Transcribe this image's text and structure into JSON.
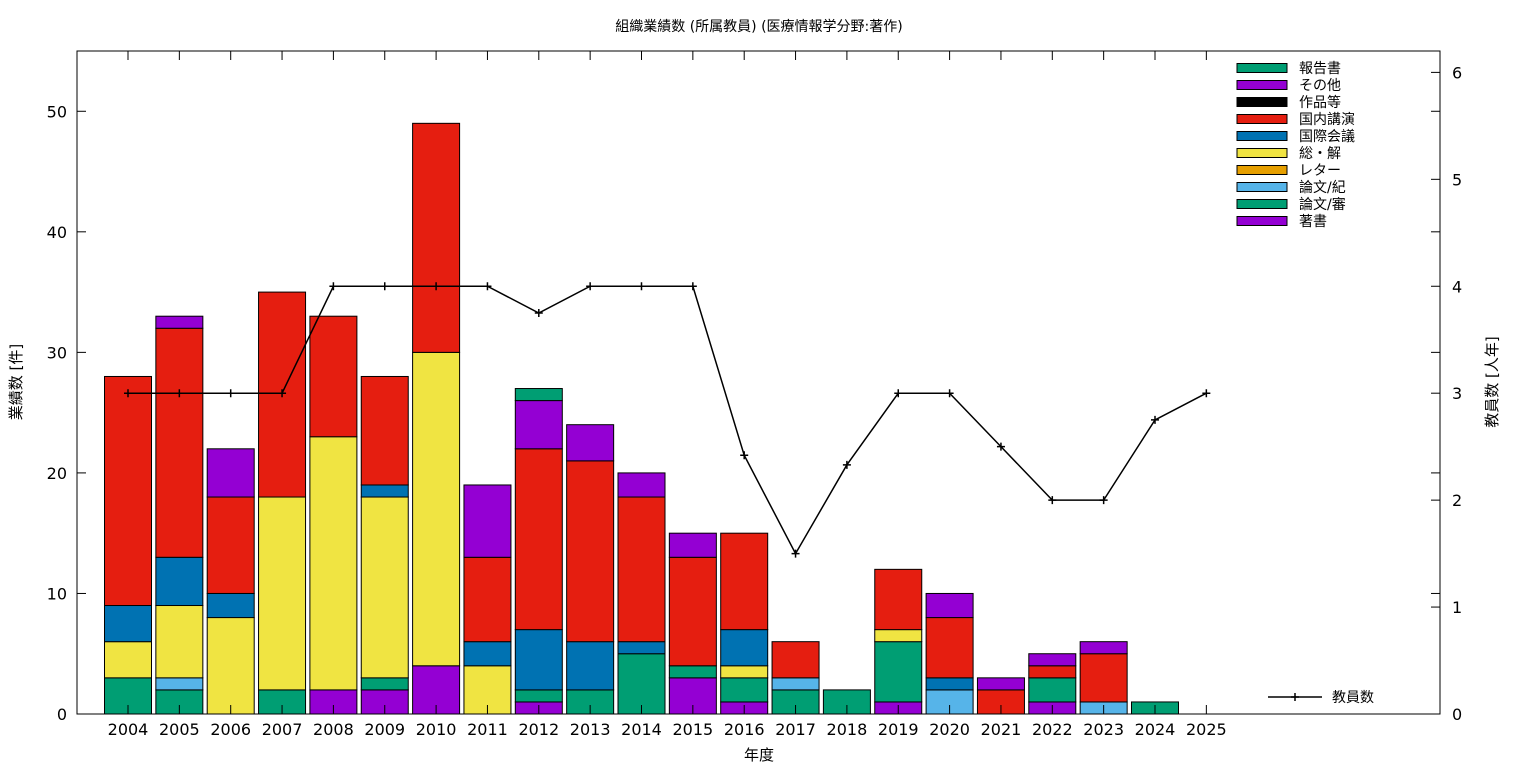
{
  "chart_data": {
    "type": "bar",
    "stacked": true,
    "title": "組織業績数 (所属教員) (医療情報学分野:著作)",
    "xlabel": "年度",
    "ylabel": "業績数 [件]",
    "y2label": "教員数 [人年]",
    "ylim": [
      0,
      55
    ],
    "y2lim": [
      0,
      6.2
    ],
    "yticks": [
      0,
      10,
      20,
      30,
      40,
      50
    ],
    "y2ticks": [
      0,
      1,
      2,
      3,
      4,
      5,
      6
    ],
    "categories": [
      "2004",
      "2005",
      "2006",
      "2007",
      "2008",
      "2009",
      "2010",
      "2011",
      "2012",
      "2013",
      "2014",
      "2015",
      "2016",
      "2017",
      "2018",
      "2019",
      "2020",
      "2021",
      "2022",
      "2023",
      "2024",
      "2025"
    ],
    "series": [
      {
        "name": "著書",
        "color": "#9400d3",
        "values": [
          0,
          0,
          0,
          0,
          2,
          2,
          4,
          0,
          1,
          0,
          0,
          3,
          1,
          0,
          0,
          1,
          0,
          0,
          1,
          0,
          0,
          0
        ]
      },
      {
        "name": "論文/審",
        "color": "#009e73",
        "values": [
          3,
          2,
          0,
          2,
          0,
          1,
          0,
          0,
          1,
          2,
          5,
          1,
          2,
          2,
          2,
          5,
          0,
          0,
          2,
          0,
          1,
          0
        ]
      },
      {
        "name": "論文/紀",
        "color": "#56b4e9",
        "values": [
          0,
          1,
          0,
          0,
          0,
          0,
          0,
          0,
          0,
          0,
          0,
          0,
          0,
          1,
          0,
          0,
          2,
          0,
          0,
          1,
          0,
          0
        ]
      },
      {
        "name": "レター",
        "color": "#e69f00",
        "values": [
          0,
          0,
          0,
          0,
          0,
          0,
          0,
          0,
          0,
          0,
          0,
          0,
          0,
          0,
          0,
          0,
          0,
          0,
          0,
          0,
          0,
          0
        ]
      },
      {
        "name": "総・解",
        "color": "#f0e442",
        "values": [
          3,
          6,
          8,
          16,
          21,
          15,
          26,
          4,
          0,
          0,
          0,
          0,
          1,
          0,
          0,
          1,
          0,
          0,
          0,
          0,
          0,
          0
        ]
      },
      {
        "name": "国際会議",
        "color": "#0072b2",
        "values": [
          3,
          4,
          2,
          0,
          0,
          1,
          0,
          2,
          5,
          4,
          1,
          0,
          3,
          0,
          0,
          0,
          1,
          0,
          0,
          0,
          0,
          0
        ]
      },
      {
        "name": "国内講演",
        "color": "#e51e10",
        "values": [
          19,
          19,
          8,
          17,
          10,
          9,
          19,
          7,
          15,
          15,
          12,
          9,
          8,
          3,
          0,
          5,
          5,
          2,
          1,
          4,
          0,
          0
        ]
      },
      {
        "name": "作品等",
        "color": "#000000",
        "values": [
          0,
          0,
          0,
          0,
          0,
          0,
          0,
          0,
          0,
          0,
          0,
          0,
          0,
          0,
          0,
          0,
          0,
          0,
          0,
          0,
          0,
          0
        ]
      },
      {
        "name": "その他",
        "color": "#9400d3",
        "values": [
          0,
          1,
          4,
          0,
          0,
          0,
          0,
          6,
          4,
          3,
          2,
          2,
          0,
          0,
          0,
          0,
          2,
          1,
          1,
          1,
          0,
          0
        ]
      },
      {
        "name": "報告書",
        "color": "#009e73",
        "values": [
          0,
          0,
          0,
          0,
          0,
          0,
          0,
          0,
          1,
          0,
          0,
          0,
          0,
          0,
          0,
          0,
          0,
          0,
          0,
          0,
          0,
          0
        ]
      }
    ],
    "line": {
      "name": "教員数",
      "axis": "y2",
      "color": "#000000",
      "values": [
        3,
        3,
        3,
        3,
        4,
        4,
        4,
        4,
        3.75,
        4,
        4,
        4,
        2.42,
        1.5,
        2.33,
        3,
        3,
        2.5,
        2,
        2,
        2.75,
        3
      ]
    },
    "legend_order": [
      "報告書",
      "その他",
      "作品等",
      "国内講演",
      "国際会議",
      "総・解",
      "レター",
      "論文/紀",
      "論文/審",
      "著書"
    ],
    "legend_position": "top-right",
    "grid": false
  }
}
